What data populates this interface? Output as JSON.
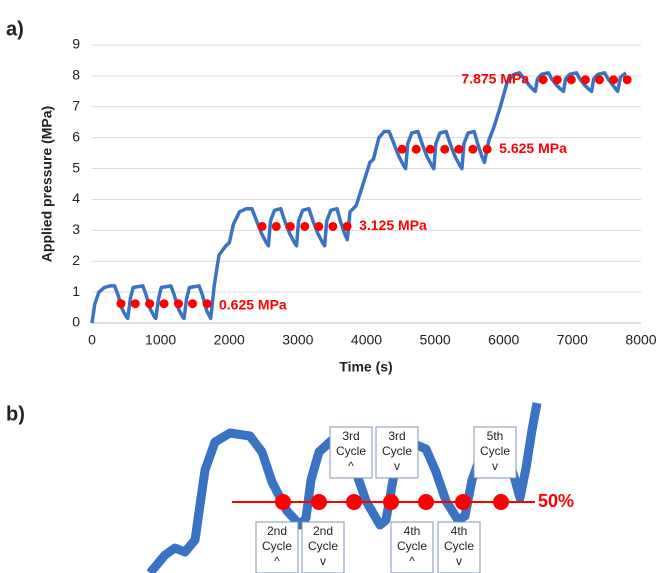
{
  "panels": [
    "a)",
    "b)"
  ],
  "chart_data": {
    "type": "line",
    "xlabel": "Time (s)",
    "ylabel": "Applied pressure (MPa)",
    "xlim": [
      0,
      8000
    ],
    "xticks": [
      0,
      1000,
      2000,
      3000,
      4000,
      5000,
      6000,
      7000,
      8000
    ],
    "ylim": [
      0,
      9
    ],
    "yticks": [
      0,
      1,
      2,
      3,
      4,
      5,
      6,
      7,
      8,
      9
    ],
    "grid": true,
    "series": [
      {
        "color": "#3a72c4",
        "x": [
          0,
          40,
          100,
          180,
          260,
          330,
          380,
          440,
          500,
          520,
          560,
          600,
          740,
          790,
          850,
          910,
          930,
          970,
          1010,
          1150,
          1200,
          1260,
          1320,
          1340,
          1380,
          1420,
          1560,
          1610,
          1670,
          1730,
          1780,
          1850,
          1950,
          2000,
          2060,
          2150,
          2250,
          2330,
          2400,
          2470,
          2540,
          2570,
          2600,
          2660,
          2750,
          2810,
          2880,
          2950,
          2980,
          3010,
          3070,
          3160,
          3220,
          3290,
          3360,
          3390,
          3420,
          3480,
          3570,
          3620,
          3680,
          3720,
          3760,
          3850,
          3950,
          4050,
          4100,
          4180,
          4260,
          4330,
          4400,
          4470,
          4540,
          4570,
          4600,
          4660,
          4750,
          4810,
          4880,
          4950,
          4980,
          5010,
          5070,
          5160,
          5220,
          5290,
          5360,
          5390,
          5420,
          5480,
          5570,
          5620,
          5680,
          5720,
          5780,
          5850,
          5950,
          6050,
          6150,
          6230,
          6300,
          6370,
          6430,
          6460,
          6490,
          6550,
          6650,
          6700,
          6770,
          6840,
          6870,
          6900,
          6960,
          7060,
          7110,
          7180,
          7250,
          7280,
          7310,
          7370,
          7470,
          7520,
          7590,
          7640,
          7660,
          7700,
          7780
        ],
        "values": [
          0,
          0.6,
          1.0,
          1.15,
          1.2,
          1.2,
          0.9,
          0.45,
          0.2,
          0.15,
          0.8,
          1.15,
          1.2,
          0.9,
          0.45,
          0.2,
          0.15,
          0.8,
          1.15,
          1.2,
          0.9,
          0.45,
          0.2,
          0.15,
          0.8,
          1.15,
          1.2,
          0.9,
          0.4,
          0.15,
          1.2,
          2.2,
          2.5,
          2.6,
          3.2,
          3.6,
          3.7,
          3.7,
          3.3,
          2.9,
          2.6,
          2.5,
          3.3,
          3.65,
          3.7,
          3.3,
          2.9,
          2.6,
          2.5,
          3.3,
          3.65,
          3.7,
          3.3,
          2.9,
          2.6,
          2.5,
          3.3,
          3.65,
          3.7,
          3.3,
          2.9,
          2.7,
          3.6,
          3.8,
          4.5,
          5.2,
          5.3,
          6.0,
          6.2,
          6.2,
          5.8,
          5.4,
          5.1,
          5.0,
          5.8,
          6.15,
          6.2,
          5.8,
          5.4,
          5.1,
          5.0,
          5.8,
          6.15,
          6.2,
          5.8,
          5.4,
          5.1,
          5.0,
          5.8,
          6.15,
          6.2,
          5.8,
          5.4,
          5.2,
          5.9,
          6.3,
          7.0,
          7.8,
          8.05,
          8.1,
          7.9,
          7.7,
          7.55,
          7.5,
          7.9,
          8.05,
          8.1,
          7.9,
          7.7,
          7.55,
          7.5,
          7.9,
          8.05,
          8.1,
          7.9,
          7.7,
          7.55,
          7.5,
          7.9,
          8.05,
          8.1,
          7.9,
          7.7,
          7.55,
          7.5,
          7.95,
          8.1
        ]
      },
      {
        "color": "#ff0000",
        "markers": true,
        "x": [
          423,
          630,
          840,
          1050,
          1260,
          1465,
          1676,
          2478,
          2685,
          2890,
          3100,
          3305,
          3510,
          3717,
          4519,
          4725,
          4930,
          5140,
          5345,
          5550,
          5758,
          6574,
          6780,
          6985,
          7190,
          7395,
          7600,
          7799
        ],
        "values": [
          0.625,
          0.625,
          0.625,
          0.625,
          0.625,
          0.625,
          0.625,
          3.125,
          3.125,
          3.125,
          3.125,
          3.125,
          3.125,
          3.125,
          5.625,
          5.625,
          5.625,
          5.625,
          5.625,
          5.625,
          5.625,
          7.875,
          7.875,
          7.875,
          7.875,
          7.875,
          7.875,
          7.875
        ]
      }
    ],
    "annotations": [
      "0.625 MPa",
      "3.125 MPa",
      "5.625 MPa",
      "7.875 MPa"
    ]
  },
  "detail": {
    "level_label": "50%",
    "cycle_labels": [
      [
        "2nd",
        "Cycle",
        "^"
      ],
      [
        "2nd",
        "Cycle",
        "v"
      ],
      [
        "3rd",
        "Cycle",
        "^"
      ],
      [
        "3rd",
        "Cycle",
        "v"
      ],
      [
        "4th",
        "Cycle",
        "^"
      ],
      [
        "4th",
        "Cycle",
        "v"
      ],
      [
        "5th",
        "Cycle",
        "v"
      ]
    ]
  }
}
